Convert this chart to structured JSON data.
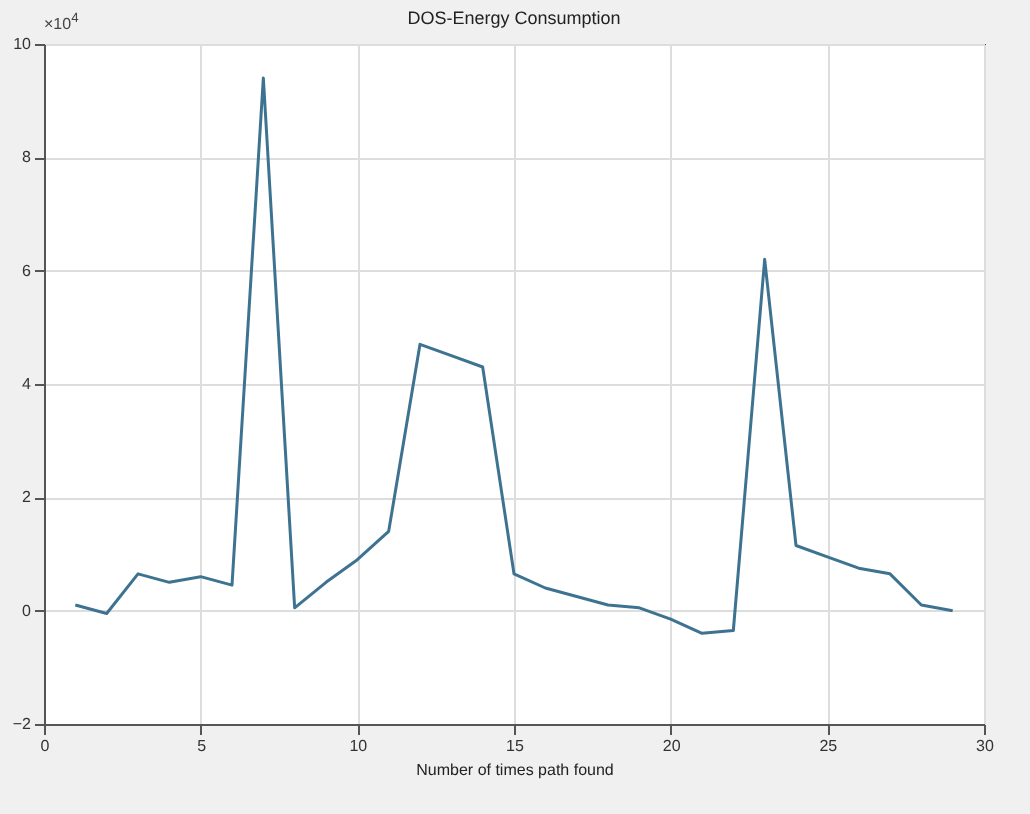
{
  "chart_data": {
    "type": "line",
    "title": "DOS-Energy Consumption",
    "xlabel": "Number of times path found",
    "annotations": [
      "×10$^{4}$"
    ],
    "x": [
      1,
      2,
      3,
      4,
      5,
      6,
      7,
      8,
      9,
      10,
      11,
      12,
      13,
      14,
      15,
      16,
      17,
      18,
      19,
      20,
      21,
      22,
      23,
      24,
      25,
      26,
      27,
      28,
      29
    ],
    "series": [
      {
        "color": "#3d7391",
        "values": [
          0.1,
          -0.05,
          0.65,
          0.5,
          0.6,
          0.45,
          9.4,
          0.05,
          0.5,
          0.9,
          1.4,
          4.7,
          4.5,
          4.3,
          0.65,
          0.4,
          0.25,
          0.1,
          0.05,
          -0.15,
          -0.4,
          -0.35,
          6.2,
          1.15,
          0.95,
          0.75,
          0.65,
          0.1,
          0
        ]
      }
    ],
    "xlim": [
      0,
      30
    ],
    "xticks": [
      0,
      5,
      10,
      15,
      20,
      25,
      30
    ],
    "ylim": [
      -2,
      10
    ],
    "yticks": [
      -2,
      0,
      2,
      4,
      6,
      8,
      10
    ],
    "grid": true
  }
}
